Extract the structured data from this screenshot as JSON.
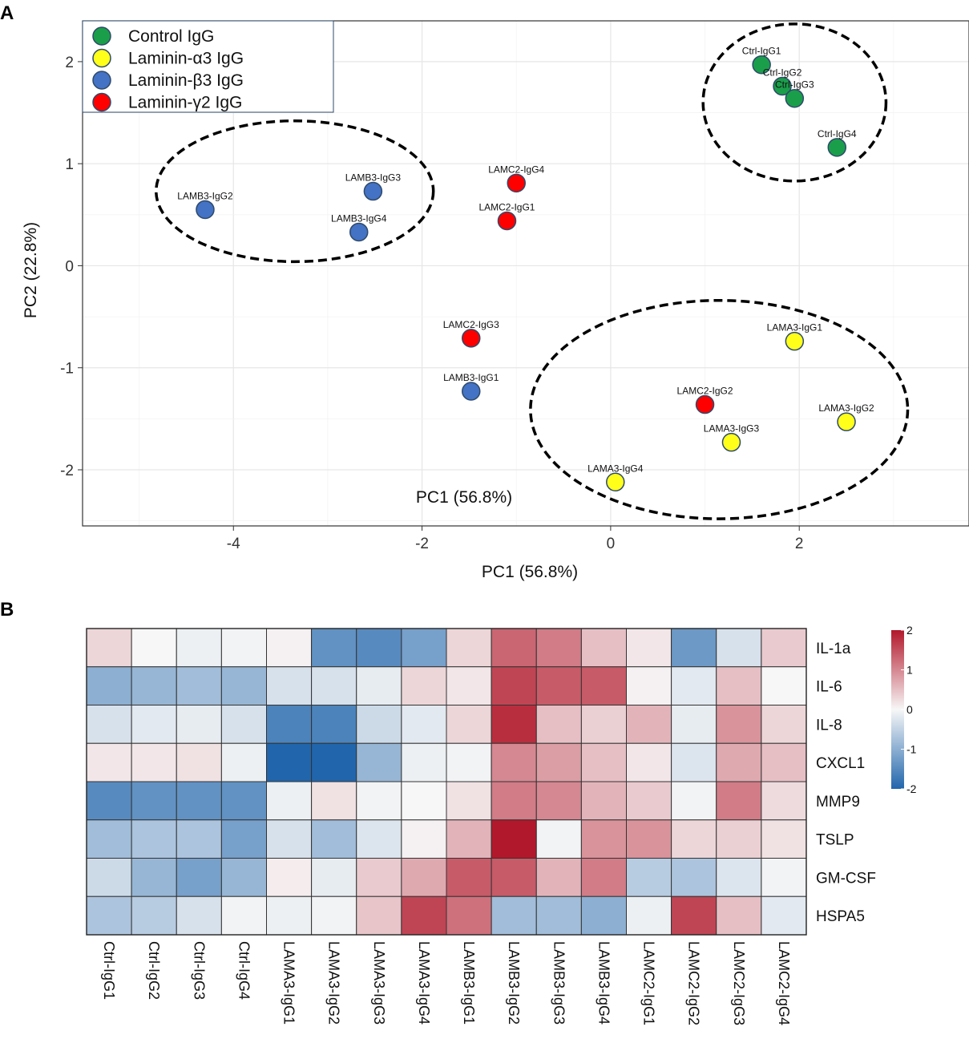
{
  "chart_data": [
    {
      "type": "scatter",
      "panel": "A",
      "xlabel": "PC1 (56.8%)",
      "ylabel": "PC2 (22.8%)",
      "inner_annotation": "PC1 (56.8%)",
      "xlim": [
        -5.6,
        3.8
      ],
      "ylim": [
        -2.55,
        2.4
      ],
      "xticks": [
        -4,
        -2,
        0,
        2
      ],
      "yticks": [
        -2,
        -1,
        0,
        1,
        2
      ],
      "tick_labels_x": [
        "-4",
        "-2",
        "0",
        "2"
      ],
      "tick_labels_y": [
        "-2",
        "-1",
        "0",
        "1",
        "2"
      ],
      "grid": true,
      "legend_position": "top-left",
      "series": [
        {
          "name": "Control IgG",
          "color": "#1a9e4a",
          "points": [
            {
              "label": "Ctrl-IgG1",
              "x": 1.6,
              "y": 1.97
            },
            {
              "label": "Ctrl-IgG2",
              "x": 1.82,
              "y": 1.76
            },
            {
              "label": "Ctrl-IgG3",
              "x": 1.95,
              "y": 1.64
            },
            {
              "label": "Ctrl-IgG4",
              "x": 2.4,
              "y": 1.16
            }
          ]
        },
        {
          "name": "Laminin-α3 IgG",
          "color": "#ffff1a",
          "points": [
            {
              "label": "LAMA3-IgG1",
              "x": 1.95,
              "y": -0.74
            },
            {
              "label": "LAMA3-IgG2",
              "x": 2.5,
              "y": -1.53
            },
            {
              "label": "LAMA3-IgG3",
              "x": 1.28,
              "y": -1.73
            },
            {
              "label": "LAMA3-IgG4",
              "x": 0.05,
              "y": -2.12
            }
          ]
        },
        {
          "name": "Laminin-β3 IgG",
          "color": "#4472c4",
          "points": [
            {
              "label": "LAMB3-IgG1",
              "x": -1.48,
              "y": -1.23
            },
            {
              "label": "LAMB3-IgG2",
              "x": -4.3,
              "y": 0.55
            },
            {
              "label": "LAMB3-IgG3",
              "x": -2.52,
              "y": 0.73
            },
            {
              "label": "LAMB3-IgG4",
              "x": -2.67,
              "y": 0.33
            }
          ]
        },
        {
          "name": "Laminin-γ2 IgG",
          "color": "#ff0000",
          "points": [
            {
              "label": "LAMC2-IgG1",
              "x": -1.1,
              "y": 0.44
            },
            {
              "label": "LAMC2-IgG2",
              "x": 1.0,
              "y": -1.36
            },
            {
              "label": "LAMC2-IgG3",
              "x": -1.48,
              "y": -0.71
            },
            {
              "label": "LAMC2-IgG4",
              "x": -1.0,
              "y": 0.81
            }
          ]
        }
      ],
      "ellipses": [
        {
          "group": "Laminin-β3 IgG",
          "cx": -3.35,
          "cy": 0.73,
          "rx": 1.47,
          "ry": 0.69
        },
        {
          "group": "Control IgG",
          "cx": 1.95,
          "cy": 1.6,
          "rx": 0.97,
          "ry": 0.77
        },
        {
          "group": "Laminin-α3 IgG",
          "cx": 1.15,
          "cy": -1.41,
          "rx": 2.0,
          "ry": 1.07
        }
      ]
    },
    {
      "type": "heatmap",
      "panel": "B",
      "columns": [
        "Ctrl-IgG1",
        "Ctrl-IgG2",
        "Ctrl-IgG3",
        "Ctrl-IgG4",
        "LAMA3-IgG1",
        "LAMA3-IgG2",
        "LAMA3-IgG3",
        "LAMA3-IgG4",
        "LAMB3-IgG1",
        "LAMB3-IgG2",
        "LAMB3-IgG3",
        "LAMB3-IgG4",
        "LAMC2-IgG1",
        "LAMC2-IgG2",
        "LAMC2-IgG3",
        "LAMC2-IgG4"
      ],
      "rows": [
        "IL-1a",
        "IL-6",
        "IL-8",
        "CXCL1",
        "MMP9",
        "TSLP",
        "GM-CSF",
        "HSPA5"
      ],
      "values": [
        [
          0.3,
          0.0,
          -0.1,
          -0.05,
          0.05,
          -1.4,
          -1.5,
          -1.2,
          0.3,
          1.3,
          1.1,
          0.5,
          0.15,
          -1.3,
          -0.3,
          0.4
        ],
        [
          -1.0,
          -0.9,
          -0.8,
          -0.9,
          -0.3,
          -0.3,
          -0.15,
          0.3,
          0.15,
          1.6,
          1.4,
          1.4,
          0.05,
          -0.2,
          0.5,
          0.0
        ],
        [
          -0.3,
          -0.2,
          -0.15,
          -0.3,
          -1.6,
          -1.6,
          -0.4,
          -0.2,
          0.3,
          1.8,
          0.5,
          0.35,
          0.6,
          -0.15,
          0.9,
          0.3
        ],
        [
          0.15,
          0.15,
          0.2,
          -0.1,
          -2.0,
          -2.1,
          -0.9,
          -0.1,
          -0.05,
          1.0,
          0.8,
          0.5,
          0.15,
          -0.25,
          0.7,
          0.5
        ],
        [
          -1.5,
          -1.4,
          -1.4,
          -1.4,
          -0.1,
          0.2,
          -0.05,
          0.0,
          0.2,
          1.1,
          1.0,
          0.6,
          0.4,
          -0.05,
          1.1,
          0.25
        ],
        [
          -0.8,
          -0.7,
          -0.7,
          -1.2,
          -0.3,
          -0.8,
          -0.25,
          0.05,
          0.6,
          2.3,
          -0.05,
          0.9,
          0.9,
          0.3,
          0.35,
          0.2
        ],
        [
          -0.4,
          -0.9,
          -1.2,
          -0.9,
          0.1,
          -0.15,
          0.4,
          0.7,
          1.4,
          1.4,
          0.6,
          1.1,
          -0.6,
          -0.7,
          -0.25,
          -0.05
        ],
        [
          -0.7,
          -0.6,
          -0.3,
          -0.05,
          -0.1,
          -0.05,
          0.45,
          1.6,
          1.2,
          -0.8,
          -0.8,
          -1.0,
          -0.1,
          1.6,
          0.5,
          -0.2
        ]
      ],
      "color_scale": {
        "min": -2,
        "mid": 0,
        "max": 2,
        "low": "#2166ac",
        "mid_color": "#f7f7f7",
        "high": "#b2182b"
      },
      "colorbar_ticks": [
        2,
        1,
        0,
        -1,
        -2
      ],
      "colorbar_tick_labels": [
        "2",
        "1",
        "0",
        "-1",
        "-2"
      ]
    }
  ],
  "panels": {
    "a_label": "A",
    "b_label": "B"
  }
}
